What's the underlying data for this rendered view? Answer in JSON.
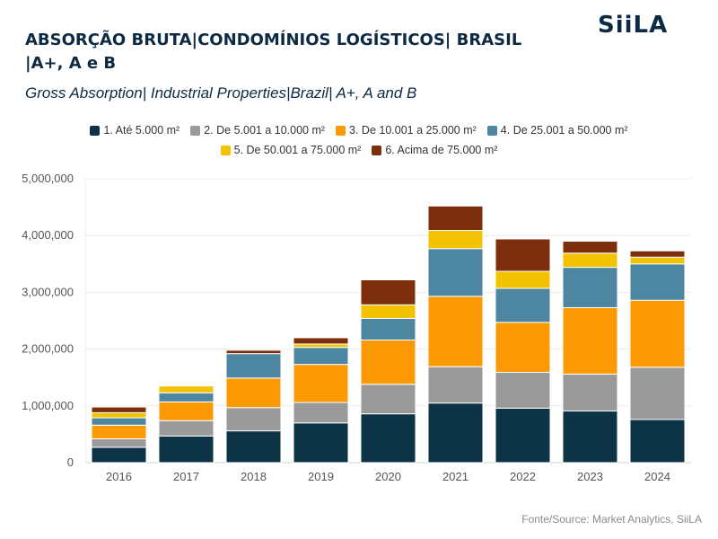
{
  "header": {
    "title": "ABSORÇÃO BRUTA|CONDOMÍNIOS LOGÍSTICOS| BRASIL |A+, A e B",
    "subtitle": "Gross Absorption| Industrial Properties|Brazil| A+, A and B"
  },
  "logo": {
    "text_left": "SiiLA"
  },
  "source": "Fonte/Source: Market Analytics, SiiLA",
  "chart_data": {
    "type": "bar",
    "stacked": true,
    "categories": [
      "2016",
      "2017",
      "2018",
      "2019",
      "2020",
      "2021",
      "2022",
      "2023",
      "2024"
    ],
    "ylim": [
      0,
      5000000
    ],
    "yticks": [
      "0",
      "1,000,000",
      "2,000,000",
      "3,000,000",
      "4,000,000",
      "5,000,000"
    ],
    "ytick_values": [
      0,
      1000000,
      2000000,
      3000000,
      4000000,
      5000000
    ],
    "grid": true,
    "legend_position": "top",
    "series": [
      {
        "name": "1. Até 5.000 m²",
        "color": "#0d3346",
        "values": [
          270000,
          470000,
          560000,
          700000,
          860000,
          1050000,
          960000,
          910000,
          760000
        ]
      },
      {
        "name": "2. De 5.001 a 10.000 m²",
        "color": "#9a9a9a",
        "values": [
          150000,
          270000,
          410000,
          360000,
          520000,
          640000,
          630000,
          650000,
          920000
        ]
      },
      {
        "name": "3. De 10.001 a 25.000 m²",
        "color": "#fc9a05",
        "values": [
          240000,
          330000,
          520000,
          670000,
          780000,
          1240000,
          880000,
          1170000,
          1180000
        ]
      },
      {
        "name": "4. De 25.001 a 50.000 m²",
        "color": "#4c86a0",
        "values": [
          130000,
          160000,
          430000,
          300000,
          380000,
          840000,
          600000,
          710000,
          640000
        ]
      },
      {
        "name": "5. De 50.001 a 75.000 m²",
        "color": "#f3c200",
        "values": [
          90000,
          120000,
          0,
          60000,
          240000,
          320000,
          300000,
          250000,
          120000
        ]
      },
      {
        "name": "6. Acima de 75.000 m²",
        "color": "#7d2e0d",
        "values": [
          100000,
          0,
          60000,
          110000,
          440000,
          430000,
          570000,
          210000,
          110000
        ]
      }
    ]
  }
}
